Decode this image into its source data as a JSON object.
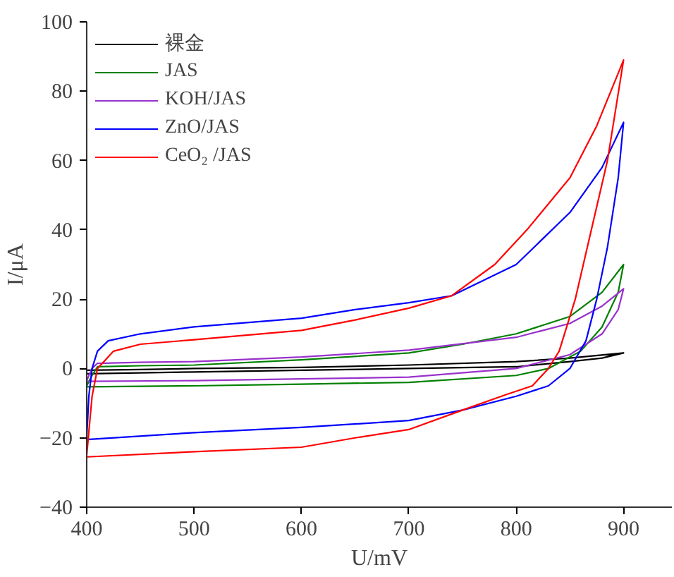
{
  "chart_data": {
    "type": "line",
    "xlabel": "U/mV",
    "ylabel": "I/μA",
    "xlim": [
      400,
      945
    ],
    "ylim": [
      -40,
      100
    ],
    "xticks": [
      400,
      500,
      600,
      700,
      800,
      900
    ],
    "yticks": [
      -40,
      -20,
      0,
      20,
      40,
      60,
      80,
      100
    ],
    "grid": false,
    "legend": "top left",
    "marker": "none",
    "line_style": "solid",
    "series": [
      {
        "name": "裸金",
        "color": "#000000",
        "x": [
          400,
          450,
          500,
          600,
          700,
          800,
          850,
          900,
          880,
          850,
          800,
          700,
          600,
          500,
          400
        ],
        "values": [
          -0.5,
          -0.3,
          0,
          0.3,
          1,
          2,
          3,
          4.5,
          3,
          2,
          0.5,
          0,
          -0.5,
          -1,
          -1.5
        ]
      },
      {
        "name": "JAS",
        "color": "#008000",
        "x": [
          400,
          405,
          410,
          450,
          500,
          600,
          700,
          750,
          800,
          850,
          880,
          900,
          895,
          880,
          860,
          830,
          800,
          700,
          600,
          500,
          400
        ],
        "values": [
          -5,
          -2,
          0.5,
          0.8,
          1,
          2.5,
          4.5,
          7,
          10,
          15,
          22,
          30,
          22,
          12,
          5,
          0,
          -2,
          -4,
          -4.5,
          -5,
          -5.3
        ]
      },
      {
        "name": "KOH/JAS",
        "color": "#9932cc",
        "x": [
          400,
          405,
          410,
          450,
          500,
          600,
          700,
          800,
          850,
          880,
          900,
          895,
          880,
          850,
          800,
          700,
          600,
          500,
          400
        ],
        "values": [
          -3.5,
          0,
          1.5,
          1.8,
          2,
          3.3,
          5.3,
          9,
          13,
          18,
          23,
          17,
          10,
          4,
          0,
          -2.5,
          -3,
          -3.5,
          -3.7
        ]
      },
      {
        "name": "ZnO/JAS",
        "color": "#0000ff",
        "x": [
          400,
          402,
          405,
          410,
          420,
          450,
          500,
          600,
          650,
          700,
          740,
          800,
          850,
          880,
          900,
          895,
          885,
          875,
          865,
          850,
          830,
          800,
          750,
          700,
          600,
          500,
          400
        ],
        "values": [
          -20,
          -8,
          0,
          5,
          8,
          10,
          12,
          14.5,
          17,
          19,
          21,
          30,
          45,
          58,
          71,
          55,
          35,
          20,
          8,
          0,
          -5,
          -8,
          -12,
          -15,
          -17,
          -18.5,
          -20.5
        ]
      },
      {
        "name": "CeO₂ /JAS",
        "color": "#ff0000",
        "x": [
          400,
          405,
          410,
          425,
          450,
          500,
          600,
          650,
          700,
          740,
          780,
          810,
          850,
          875,
          900,
          885,
          870,
          855,
          840,
          830,
          815,
          790,
          750,
          700,
          650,
          600,
          500,
          400
        ],
        "values": [
          -25,
          -8,
          0,
          5,
          7,
          8.3,
          11,
          14,
          17.4,
          21,
          30,
          40,
          55,
          70,
          89,
          60,
          40,
          20,
          5,
          0,
          -5,
          -7.6,
          -12,
          -17.6,
          -20,
          -22.7,
          -24,
          -25.5
        ]
      }
    ]
  }
}
